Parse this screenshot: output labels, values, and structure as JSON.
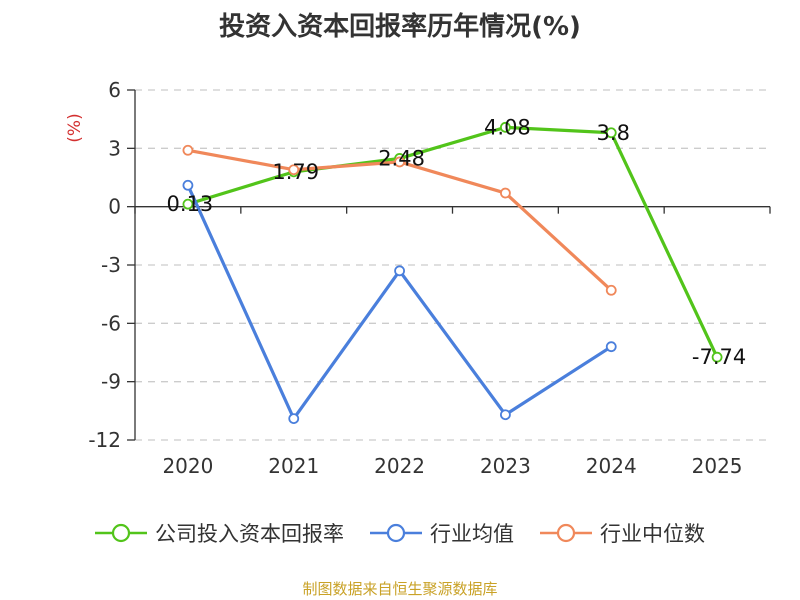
{
  "chart_data": {
    "type": "line",
    "title": "投资入资本回报率历年情况(%)",
    "ylabel": "(%)",
    "categories": [
      "2020",
      "2021",
      "2022",
      "2023",
      "2024",
      "2025"
    ],
    "ylim": [
      -12,
      6
    ],
    "yticks": [
      6,
      3,
      0,
      -3,
      -6,
      -9,
      -12
    ],
    "ytick_labels": [
      "6",
      "3",
      "0",
      "-3",
      "-6",
      "-9",
      "-12"
    ],
    "grid": true,
    "legend_position": "bottom",
    "series": [
      {
        "name": "公司投入资本回报率",
        "color": "#52c41a",
        "values": [
          0.13,
          1.79,
          2.48,
          4.08,
          3.8,
          -7.74
        ],
        "labels": [
          "0.13",
          "1.79",
          "2.48",
          "4.08",
          "3.8",
          "-7.74"
        ]
      },
      {
        "name": "行业均值",
        "color": "#4a7fdc",
        "values": [
          1.1,
          -10.9,
          -3.3,
          -10.7,
          -7.2,
          null
        ]
      },
      {
        "name": "行业中位数",
        "color": "#f0885a",
        "values": [
          2.9,
          1.9,
          2.3,
          0.7,
          -4.3,
          null
        ]
      }
    ]
  },
  "source_note": "制图数据来自恒生聚源数据库",
  "colors": {
    "source_note": "#c9a227",
    "ylabel": "#d32f2f",
    "grid": "#cccccc",
    "axis": "#333333"
  }
}
